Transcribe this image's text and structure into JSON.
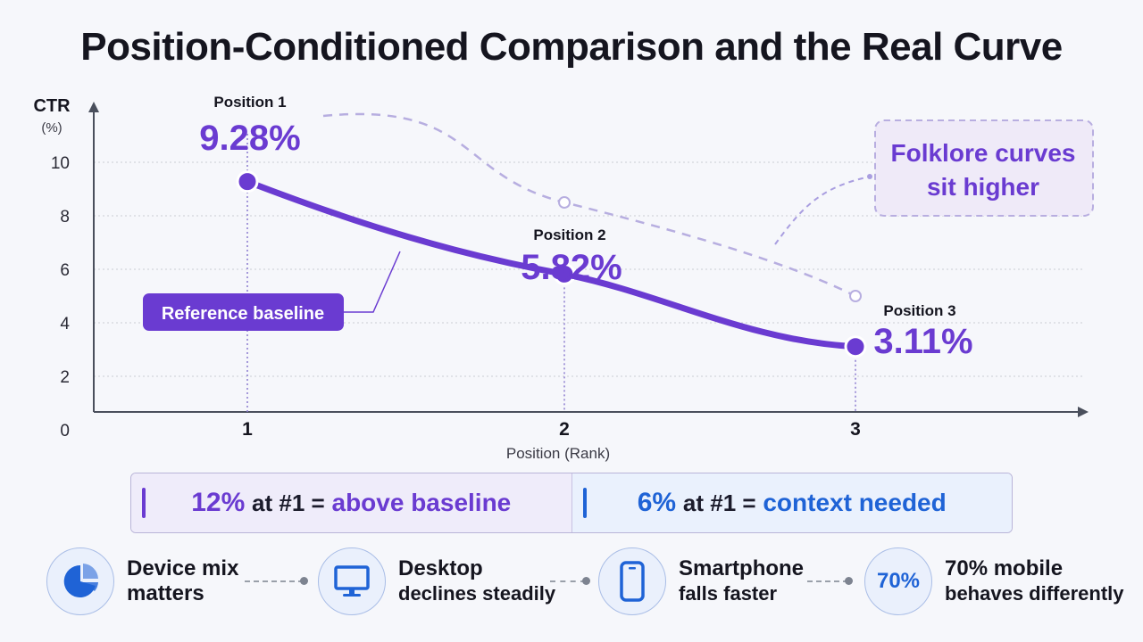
{
  "title": "Position-Conditioned Comparison and the Real Curve",
  "chart_data": {
    "type": "line",
    "ylabel": "CTR",
    "yunit": "(%)",
    "xlabel": "Position (Rank)",
    "x": [
      1,
      2,
      3
    ],
    "ylim": [
      0,
      10
    ],
    "yticks": [
      0,
      2,
      4,
      6,
      8,
      10
    ],
    "grid": true,
    "series": [
      {
        "values": [
          9.28,
          5.82,
          3.11
        ],
        "style": "solid",
        "color": "#6a3bd1"
      },
      {
        "values": [
          11,
          8.5,
          5.0
        ],
        "style": "dashed",
        "color": "#b7aee0"
      }
    ],
    "point_labels": [
      {
        "label": "Position 1",
        "value": "9.28%"
      },
      {
        "label": "Position 2",
        "value": "5.82%"
      },
      {
        "label": "Position 3",
        "value": "3.11%"
      }
    ],
    "annotations": {
      "baseline": "Reference baseline",
      "folklore_line1": "Folklore curves",
      "folklore_line2": "sit higher"
    }
  },
  "comparison": {
    "left": {
      "big": "12%",
      "mid": "at #1 =",
      "tail": "above baseline"
    },
    "right": {
      "big": "6%",
      "mid": "at #1 =",
      "tail": "context needed"
    }
  },
  "footer": [
    {
      "icon": "pie-chart-icon",
      "line1": "Device mix",
      "line2": "matters"
    },
    {
      "icon": "desktop-monitor-icon",
      "line1": "Desktop",
      "line2": "declines steadily"
    },
    {
      "icon": "smartphone-icon",
      "line1": "Smartphone",
      "line2": "falls faster"
    },
    {
      "icon": "percent-badge-icon",
      "badge": "70%",
      "line1": "70% mobile",
      "line2": "behaves differently"
    }
  ],
  "colors": {
    "accent": "#6a3bd1",
    "blue": "#1f63d6",
    "folklore": "#b7aee0"
  }
}
